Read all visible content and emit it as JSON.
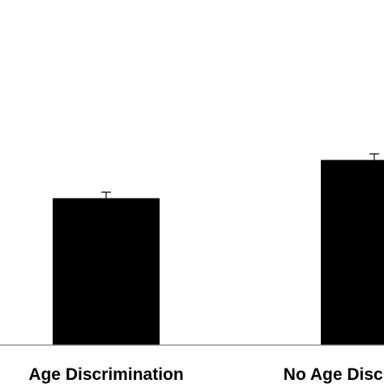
{
  "chart_data": {
    "type": "bar",
    "categories": [
      "Age Discrimination",
      "No Age Discrimination"
    ],
    "values": [
      3.15,
      3.97
    ],
    "error": [
      0.13,
      0.13
    ],
    "title": "",
    "xlabel": "",
    "ylabel": "",
    "ylim": [
      0,
      7.4
    ],
    "grid": false,
    "colors": {
      "bar": "#000000",
      "axis": "#7f7f7f",
      "text": "#000000"
    }
  }
}
